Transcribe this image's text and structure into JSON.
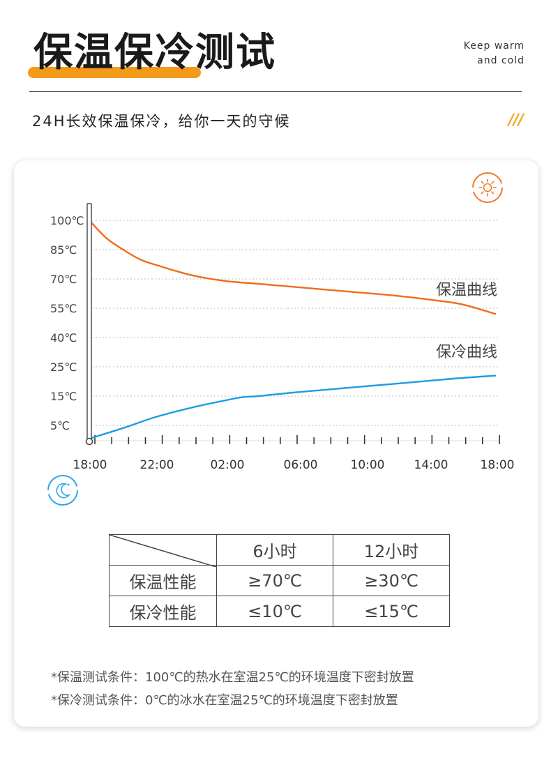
{
  "header": {
    "title": "保温保冷测试",
    "en_line1": "Keep warm",
    "en_line2": "and cold",
    "subtitle": "24H长效保温保冷，给你一天的守候",
    "decoration": "///",
    "accent_color": "#f39a1a"
  },
  "icons": {
    "top": "sun-icon",
    "bottom": "moon-icon",
    "sun_color": "#f07a2a",
    "moon_color": "#2ba5e8"
  },
  "chart_data": {
    "type": "line",
    "title": "",
    "xlabel": "",
    "ylabel": "",
    "y_ticks": [
      "100℃",
      "85℃",
      "70℃",
      "55℃",
      "40℃",
      "25℃",
      "15℃",
      "5℃"
    ],
    "x_ticks": [
      "18:00",
      "22:00",
      "02:00",
      "06:00",
      "10:00",
      "14:00",
      "18:00"
    ],
    "x_hours": [
      0,
      4,
      8,
      12,
      16,
      20,
      24
    ],
    "grid": "horizontal dotted",
    "series": [
      {
        "name": "保温曲线",
        "color": "#f26b1d",
        "x": [
          0,
          1,
          2,
          3,
          4,
          6,
          8,
          10,
          12,
          14,
          16,
          18,
          20,
          22,
          24
        ],
        "y": [
          100,
          91,
          85,
          80,
          77,
          72,
          69,
          67.5,
          66,
          64.5,
          63,
          61.5,
          59.5,
          57,
          52
        ]
      },
      {
        "name": "保冷曲线",
        "color": "#1e9de3",
        "x": [
          0,
          2,
          4,
          6,
          8,
          9,
          10,
          12,
          14,
          16,
          18,
          20,
          22,
          24
        ],
        "y": [
          0,
          4,
          8,
          11,
          13.5,
          14.6,
          15,
          16.2,
          17.2,
          18.2,
          19.2,
          20.2,
          21.2,
          22
        ]
      }
    ]
  },
  "table": {
    "headers": [
      "6小时",
      "12小时"
    ],
    "rows": [
      {
        "label": "保温性能",
        "values": [
          "≥70℃",
          "≥30℃"
        ]
      },
      {
        "label": "保冷性能",
        "values": [
          "≤10℃",
          "≤15℃"
        ]
      }
    ]
  },
  "footnotes": [
    "*保温测试条件：100℃的热水在室温25℃的环境温度下密封放置",
    "*保冷测试条件：0℃的冰水在室温25℃的环境温度下密封放置"
  ]
}
